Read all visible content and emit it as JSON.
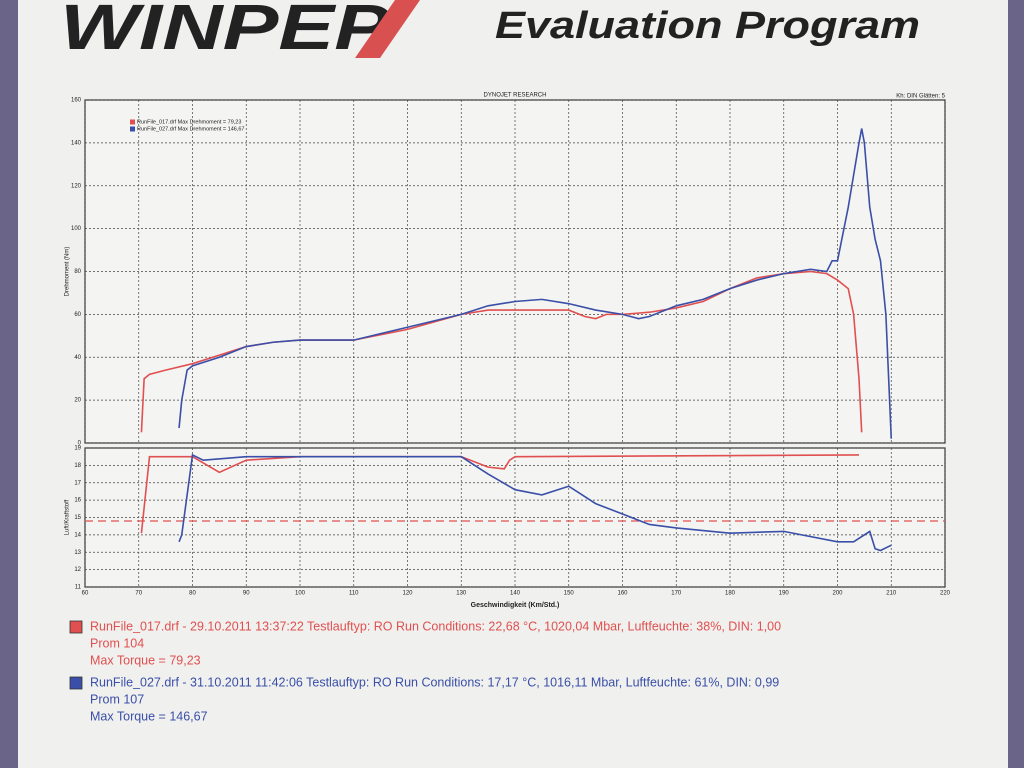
{
  "header": {
    "logo": "WINPEP",
    "subtitle": "Evaluation Program"
  },
  "chart_data": [
    {
      "type": "line",
      "title": "DYNOJET RESEARCH",
      "annotation": "Kh: DIN Glätten: 5",
      "ylabel": "Drehmoment (Nm)",
      "xlim": [
        60,
        220
      ],
      "xticks": [
        60,
        70,
        80,
        90,
        100,
        110,
        120,
        130,
        140,
        150,
        160,
        170,
        180,
        190,
        200,
        210,
        220
      ],
      "ylim": [
        0,
        160
      ],
      "yticks": [
        0,
        20,
        40,
        60,
        80,
        100,
        120,
        140,
        160
      ],
      "grid": true,
      "legend": "upper left",
      "series": [
        {
          "name": "RunFile_017.drf Max Drehmoment = 79,23",
          "color": "#e05050",
          "x": [
            70.5,
            71,
            72,
            75,
            80,
            85,
            90,
            95,
            100,
            110,
            120,
            130,
            135,
            140,
            145,
            150,
            153,
            155,
            157,
            160,
            165,
            170,
            175,
            180,
            185,
            190,
            195,
            198,
            200,
            202,
            203,
            204,
            204.5
          ],
          "values": [
            5,
            30,
            32,
            34,
            37,
            41,
            45,
            47,
            48,
            48,
            53,
            60,
            62,
            62,
            62,
            62,
            59,
            58,
            60,
            60,
            61,
            63,
            66,
            72,
            77,
            79,
            80,
            79,
            76,
            72,
            60,
            30,
            5
          ]
        },
        {
          "name": "RunFile_027.drf Max Drehmoment = 146,67",
          "color": "#3a4fa8",
          "x": [
            77.5,
            78,
            79,
            80,
            85,
            90,
            95,
            100,
            110,
            120,
            130,
            135,
            140,
            145,
            150,
            155,
            160,
            163,
            165,
            170,
            175,
            180,
            185,
            190,
            195,
            198,
            199,
            200,
            202,
            203,
            204,
            204.5,
            205,
            206,
            207,
            208,
            209,
            210
          ],
          "values": [
            7,
            20,
            34,
            36,
            40,
            45,
            47,
            48,
            48,
            54,
            60,
            64,
            66,
            67,
            65,
            62,
            60,
            58,
            59,
            64,
            67,
            72,
            76,
            79,
            81,
            80,
            85,
            85,
            110,
            125,
            140,
            146.67,
            140,
            110,
            95,
            85,
            60,
            2
          ]
        }
      ]
    },
    {
      "type": "line",
      "ylabel": "Luft/Kraftstoff",
      "xlabel": "Geschwindigkeit (Km/Std.)",
      "xlim": [
        60,
        220
      ],
      "xticks": [
        60,
        70,
        80,
        90,
        100,
        110,
        120,
        130,
        140,
        150,
        160,
        170,
        180,
        190,
        200,
        210,
        220
      ],
      "ylim": [
        11,
        19
      ],
      "yticks": [
        11,
        12,
        13,
        14,
        15,
        16,
        17,
        18,
        19
      ],
      "grid": true,
      "reference_line": {
        "value": 14.8,
        "color": "#e05050"
      },
      "series": [
        {
          "color": "#e05050",
          "x": [
            70.5,
            72,
            80,
            85,
            90,
            100,
            130,
            135,
            138,
            139,
            140,
            204
          ],
          "values": [
            14.1,
            18.5,
            18.5,
            17.6,
            18.3,
            18.5,
            18.5,
            17.9,
            17.8,
            18.3,
            18.5,
            18.6
          ]
        },
        {
          "color": "#3a4fa8",
          "x": [
            77.5,
            78,
            80,
            82,
            90,
            130,
            135,
            140,
            145,
            150,
            155,
            160,
            165,
            170,
            180,
            190,
            200,
            203,
            206,
            207,
            208,
            210
          ],
          "values": [
            13.6,
            14,
            18.6,
            18.3,
            18.5,
            18.5,
            17.5,
            16.6,
            16.3,
            16.8,
            15.8,
            15.2,
            14.6,
            14.4,
            14.1,
            14.2,
            13.6,
            13.6,
            14.2,
            13.2,
            13.1,
            13.4
          ]
        }
      ]
    }
  ],
  "runs": [
    {
      "color": "#e05050",
      "line1": "RunFile_017.drf - 29.10.2011 13:37:22  Testlauftyp: RO  Run Conditions: 22,68 °C, 1020,04 Mbar,  Luftfeuchte: 38%, DIN: 1,00",
      "line2": "Prom 104",
      "line3": "Max Torque = 79,23"
    },
    {
      "color": "#3a4fa8",
      "line1": "RunFile_027.drf - 31.10.2011 11:42:06  Testlauftyp: RO  Run Conditions: 17,17 °C, 1016,11 Mbar,  Luftfeuchte: 61%, DIN: 0,99",
      "line2": "Prom 107",
      "line3": "Max Torque = 146,67"
    }
  ]
}
